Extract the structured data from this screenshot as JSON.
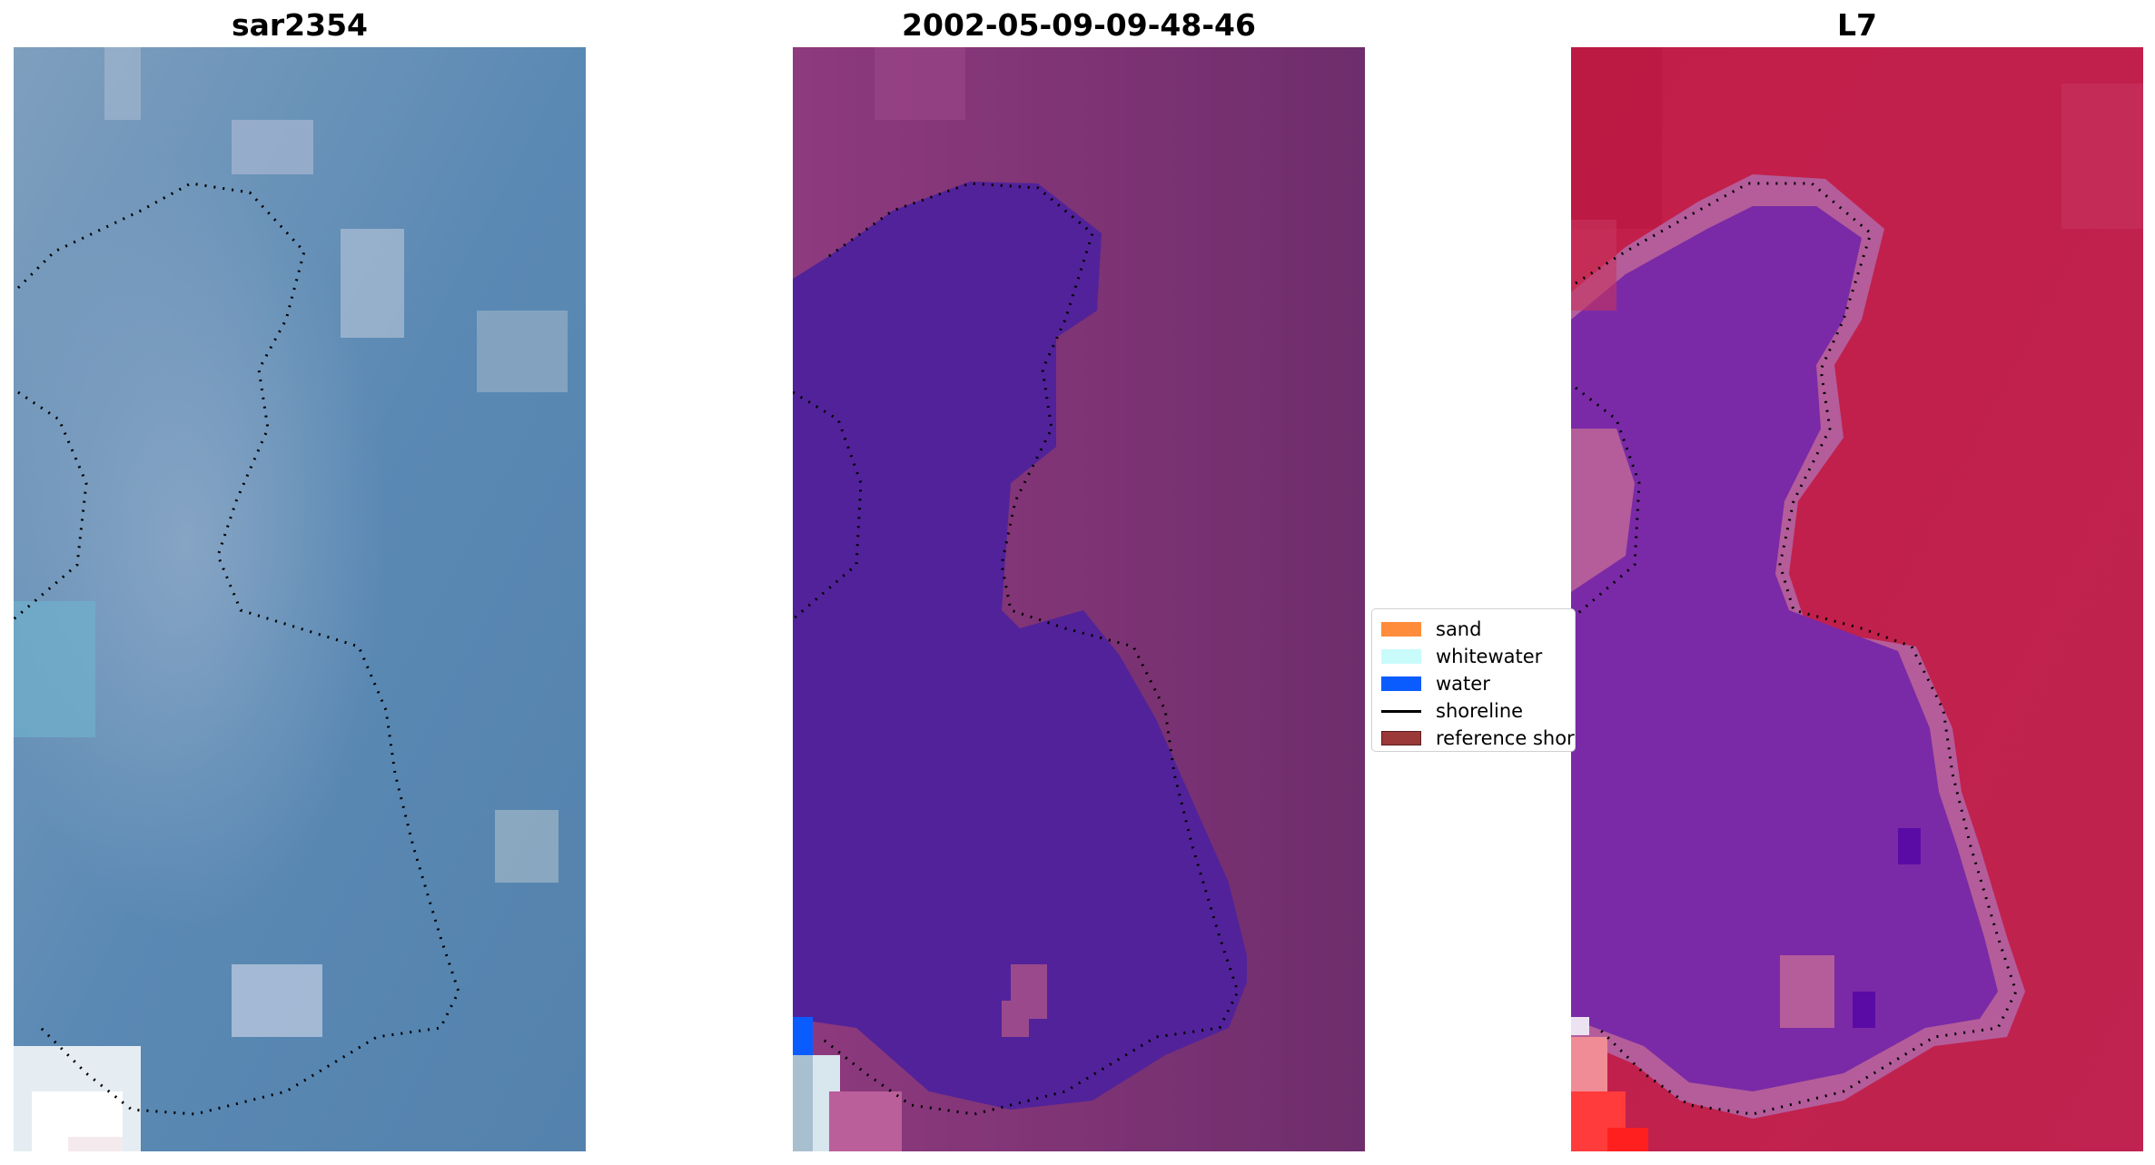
{
  "panels": [
    {
      "title": "sar2354"
    },
    {
      "title": "2002-05-09-09-48-46"
    },
    {
      "title": "L7"
    }
  ],
  "legend": {
    "items": [
      {
        "label": "sand",
        "color": "#ff8c3a",
        "kind": "patch"
      },
      {
        "label": "whitewater",
        "color": "#c9fbfb",
        "kind": "patch"
      },
      {
        "label": "water",
        "color": "#0a5cff",
        "kind": "patch"
      },
      {
        "label": "shoreline",
        "color": "#000000",
        "kind": "line"
      },
      {
        "label": "reference shoreline",
        "color": "#9b3838",
        "kind": "patch"
      }
    ]
  },
  "colors": {
    "rgb_water": "#4f7ea9",
    "classified_background": "#7a3278",
    "classified_water_class": "#52229a",
    "mndwi_land": "#c0204e",
    "mndwi_water": "#7a2aa6"
  }
}
